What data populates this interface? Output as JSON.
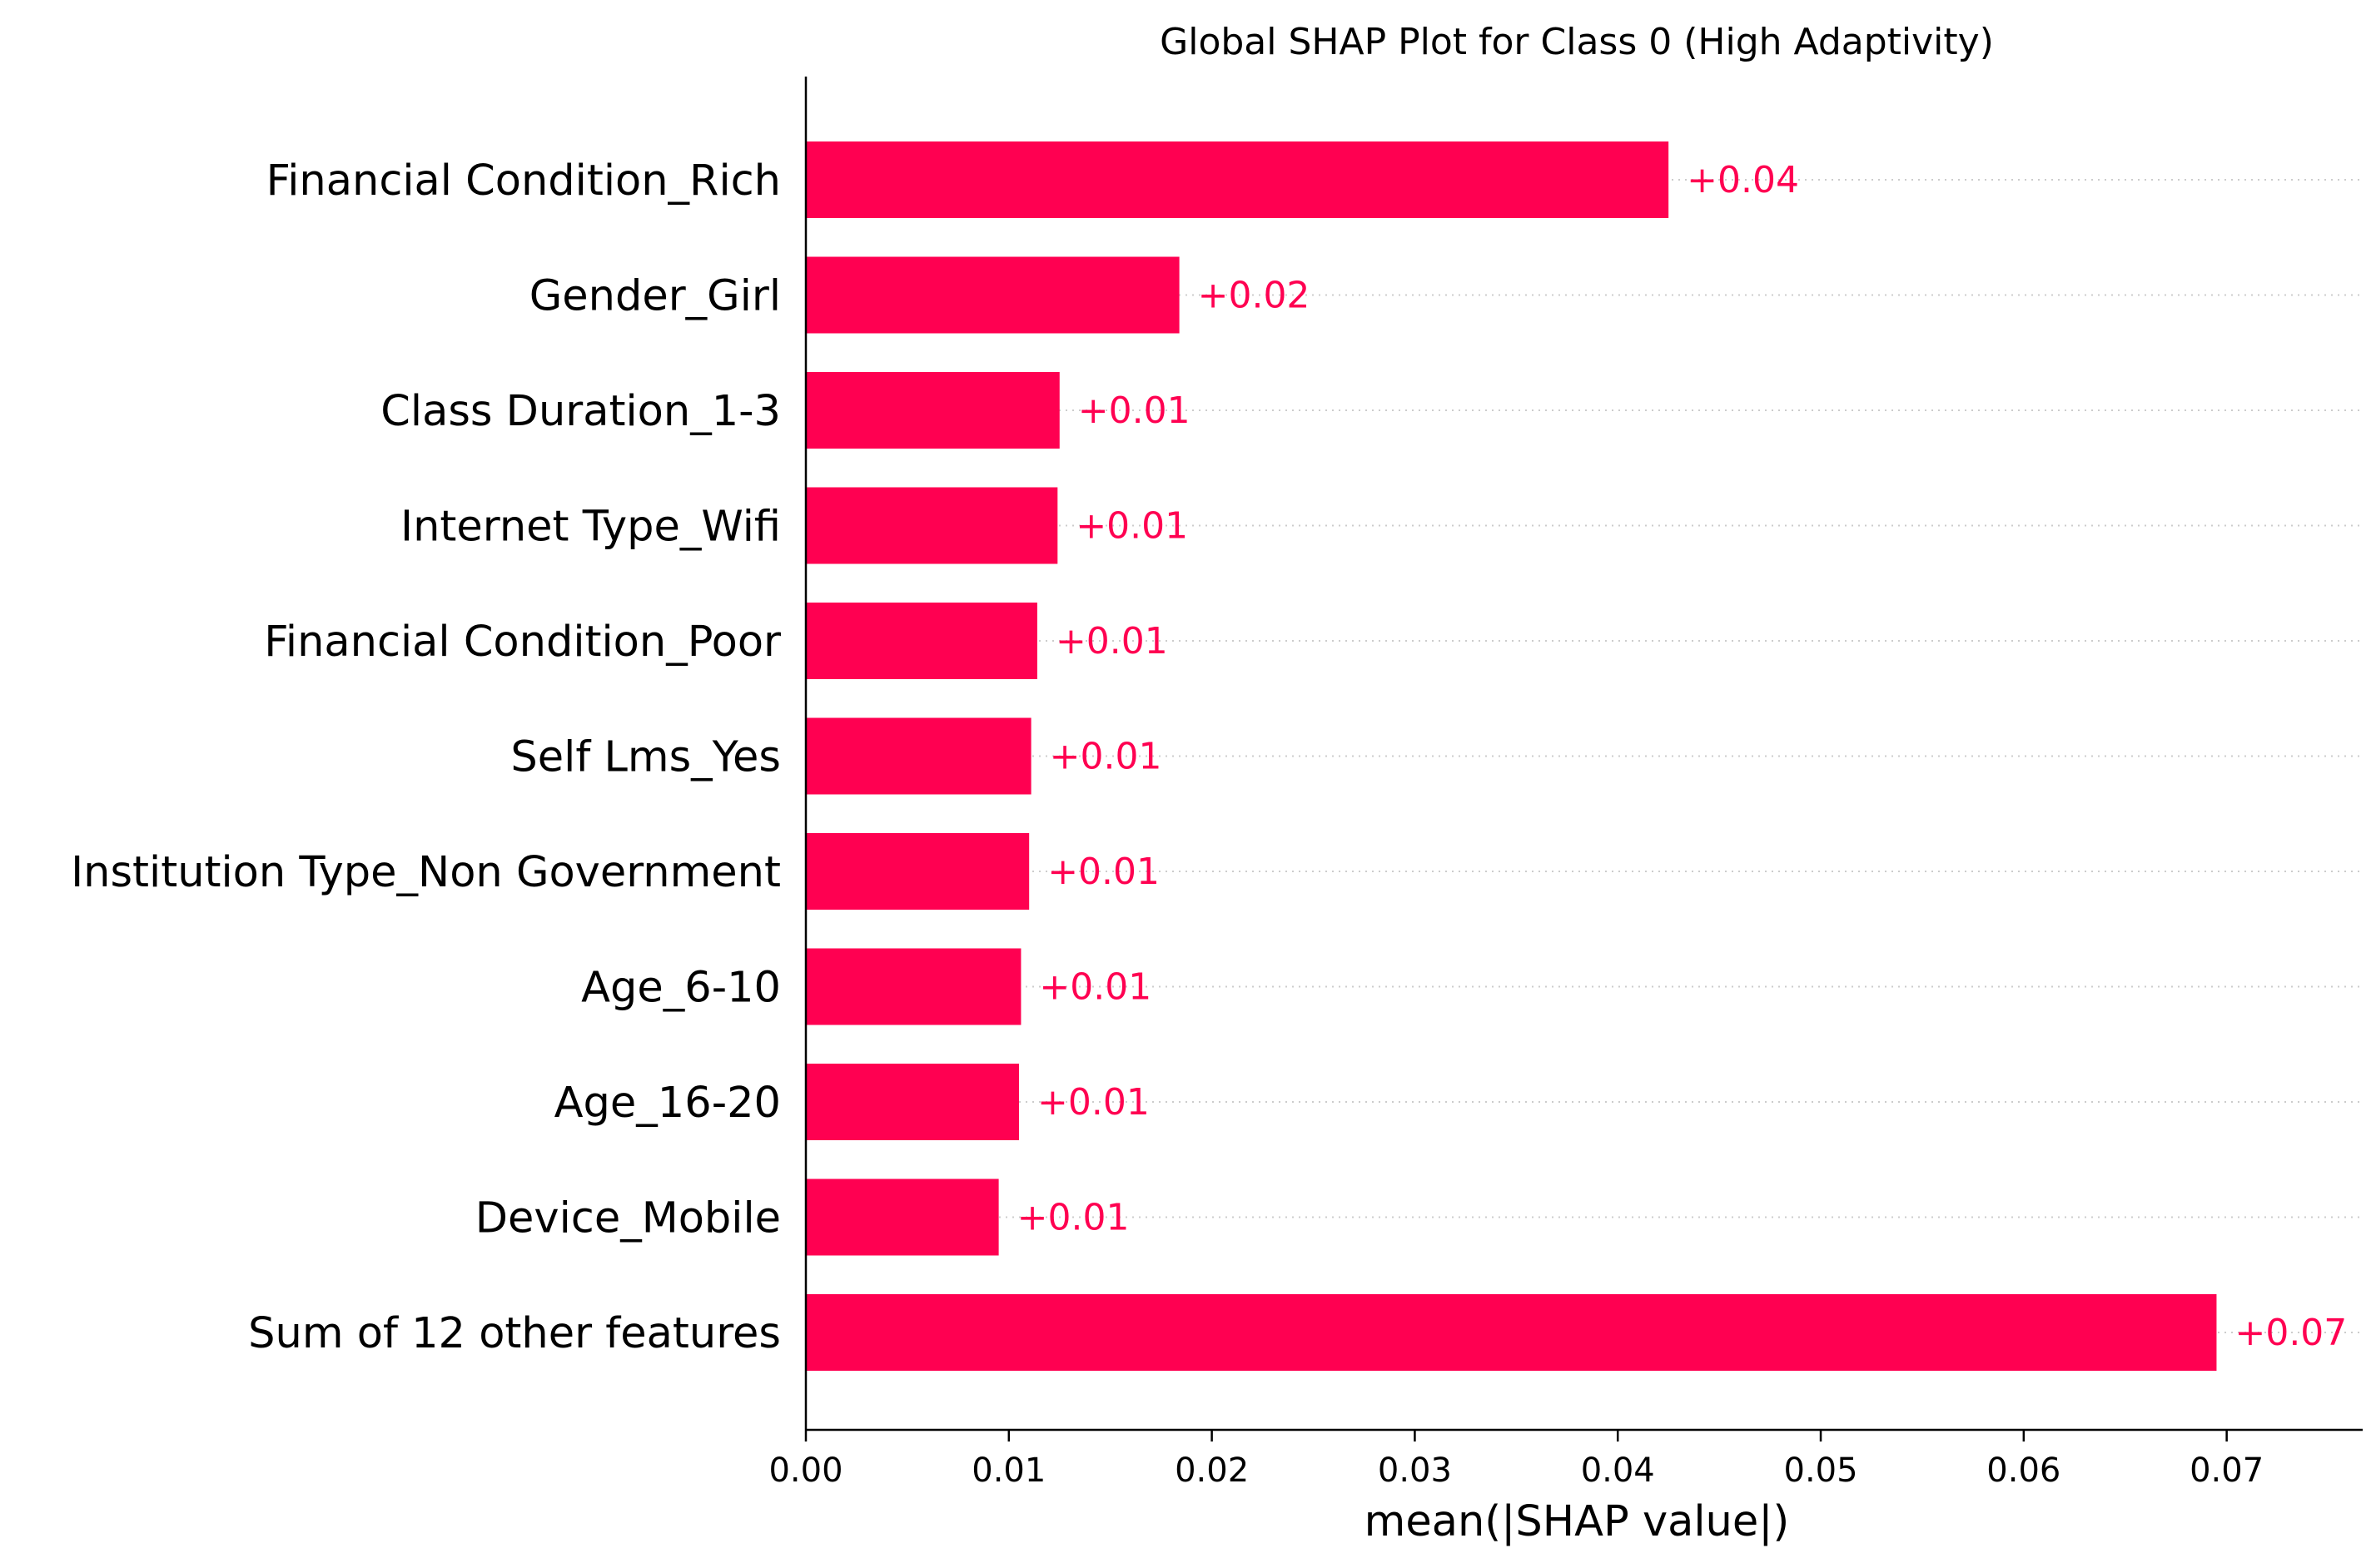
{
  "chart_data": {
    "type": "bar",
    "orientation": "horizontal",
    "title": "Global SHAP Plot for Class 0 (High Adaptivity)",
    "xlabel": "mean(|SHAP value|)",
    "ylabel": "",
    "xlim": [
      0,
      0.0767
    ],
    "xticks": [
      0.0,
      0.01,
      0.02,
      0.03,
      0.04,
      0.05,
      0.06,
      0.07
    ],
    "xtick_labels": [
      "0.00",
      "0.01",
      "0.02",
      "0.03",
      "0.04",
      "0.05",
      "0.06",
      "0.07"
    ],
    "categories": [
      "Financial Condition_Rich",
      "Gender_Girl",
      "Class Duration_1-3",
      "Internet Type_Wifi",
      "Financial Condition_Poor",
      "Self Lms_Yes",
      "Institution Type_Non Government",
      "Age_6-10",
      "Age_16-20",
      "Device_Mobile",
      "Sum of 12 other features"
    ],
    "values": [
      0.0425,
      0.0184,
      0.0125,
      0.0124,
      0.0114,
      0.0111,
      0.011,
      0.0106,
      0.0105,
      0.0095,
      0.0695
    ],
    "value_labels": [
      "+0.04",
      "+0.02",
      "+0.01",
      "+0.01",
      "+0.01",
      "+0.01",
      "+0.01",
      "+0.01",
      "+0.01",
      "+0.01",
      "+0.07"
    ],
    "grid": "dotted row guides",
    "legend": "none",
    "colors": {
      "bar": "#ff0051",
      "value_label": "#ff0051",
      "guide": "#cccccc",
      "axis": "#000000"
    }
  }
}
